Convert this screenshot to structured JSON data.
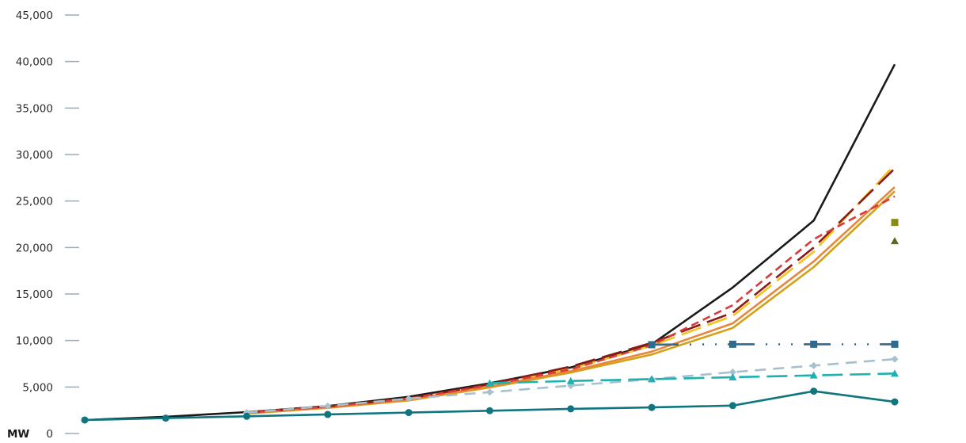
{
  "chart_data": {
    "type": "line",
    "ylabel": "MW",
    "ylim": [
      0,
      45000
    ],
    "yticks": [
      0,
      5000,
      10000,
      15000,
      20000,
      25000,
      30000,
      35000,
      40000,
      45000
    ],
    "ytick_labels": [
      "0",
      "5,000",
      "10,000",
      "15,000",
      "20,000",
      "25,000",
      "30,000",
      "35,000",
      "40,000",
      "45,000"
    ],
    "x": [
      0,
      1,
      2,
      3,
      4,
      5,
      6,
      7,
      8,
      9,
      10
    ],
    "grid": false,
    "legend": "none",
    "series": [
      {
        "color": "#1a1a1a",
        "dash": "solid",
        "marker": "none",
        "values": [
          1450,
          1800,
          2300,
          2950,
          3950,
          5400,
          7100,
          9600,
          15700,
          22900,
          39700
        ]
      },
      {
        "color": "#d4a017",
        "dash": "solid",
        "marker": "none",
        "values": [
          null,
          null,
          2150,
          2750,
          3550,
          4950,
          6550,
          8500,
          11350,
          17900,
          26050
        ]
      },
      {
        "color": "#e8873a",
        "dash": "solid",
        "marker": "none",
        "values": [
          null,
          null,
          2200,
          2800,
          3650,
          5050,
          6700,
          8800,
          11850,
          18500,
          26500
        ]
      },
      {
        "color": "#f3c21c",
        "dash": "long-dash",
        "marker": "none",
        "values": [
          null,
          null,
          2250,
          2900,
          3750,
          5250,
          6950,
          9450,
          12650,
          19550,
          28900
        ]
      },
      {
        "color": "#8b1a1a",
        "dash": "long-dash",
        "marker": "none",
        "values": [
          null,
          null,
          2250,
          2900,
          3750,
          5300,
          7200,
          9750,
          13000,
          20000,
          28500
        ]
      },
      {
        "color": "#d93a3a",
        "dash": "short-dash",
        "marker": "none",
        "values": [
          null,
          null,
          2250,
          2900,
          3750,
          5200,
          6900,
          9500,
          13800,
          20900,
          25500
        ]
      },
      {
        "color": "#2e6b8f",
        "dash": "dash-dot",
        "marker": "square",
        "values": [
          null,
          null,
          null,
          null,
          null,
          null,
          null,
          9550,
          9600,
          9600,
          9600
        ]
      },
      {
        "color": "#a8bfcc",
        "dash": "dash",
        "marker": "diamond",
        "values": [
          null,
          null,
          2250,
          2950,
          3750,
          4450,
          5150,
          5850,
          6600,
          7300,
          8000
        ]
      },
      {
        "color": "#1fb0b0",
        "dash": "long-dash",
        "marker": "triangle",
        "values": [
          null,
          null,
          null,
          null,
          null,
          5400,
          5650,
          5850,
          6050,
          6250,
          6450
        ]
      },
      {
        "color": "#0f7680",
        "dash": "solid",
        "marker": "circle",
        "values": [
          1450,
          1650,
          1850,
          2050,
          2250,
          2450,
          2650,
          2800,
          3000,
          4550,
          3400
        ]
      },
      {
        "color": "#8a8a1a",
        "dash": "none",
        "marker": "square",
        "values": [
          null,
          null,
          null,
          null,
          null,
          null,
          null,
          null,
          null,
          null,
          22700
        ]
      },
      {
        "color": "#5c6a1e",
        "dash": "none",
        "marker": "triangle",
        "values": [
          null,
          null,
          null,
          null,
          null,
          null,
          null,
          null,
          null,
          null,
          20700
        ]
      }
    ]
  }
}
